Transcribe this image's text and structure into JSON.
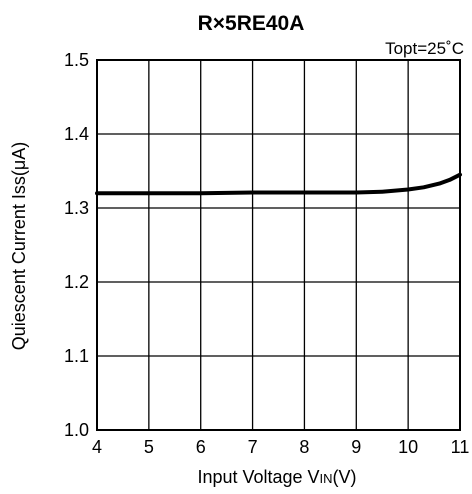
{
  "chart_data": {
    "type": "line",
    "title": "R×5RE40A",
    "condition": "Topt=25˚C",
    "xlabel": "Input Voltage VIN(V)",
    "xlabel_main": "Input Voltage V",
    "xlabel_sub": "IN",
    "xlabel_unit": "(V)",
    "ylabel": "Quiescent Current Iss(μA)",
    "xlim": [
      4,
      11
    ],
    "ylim": [
      1.0,
      1.5
    ],
    "x_ticks": [
      "4",
      "5",
      "6",
      "7",
      "8",
      "9",
      "10",
      "11"
    ],
    "y_ticks": [
      "1.0",
      "1.1",
      "1.2",
      "1.3",
      "1.4",
      "1.5"
    ],
    "grid": true,
    "series": [
      {
        "x": [
          4,
          5,
          6,
          7,
          8,
          9,
          9.5,
          10,
          10.3,
          10.6,
          10.8,
          11
        ],
        "y": [
          1.32,
          1.32,
          1.32,
          1.321,
          1.321,
          1.321,
          1.322,
          1.325,
          1.328,
          1.333,
          1.338,
          1.345
        ]
      }
    ]
  }
}
